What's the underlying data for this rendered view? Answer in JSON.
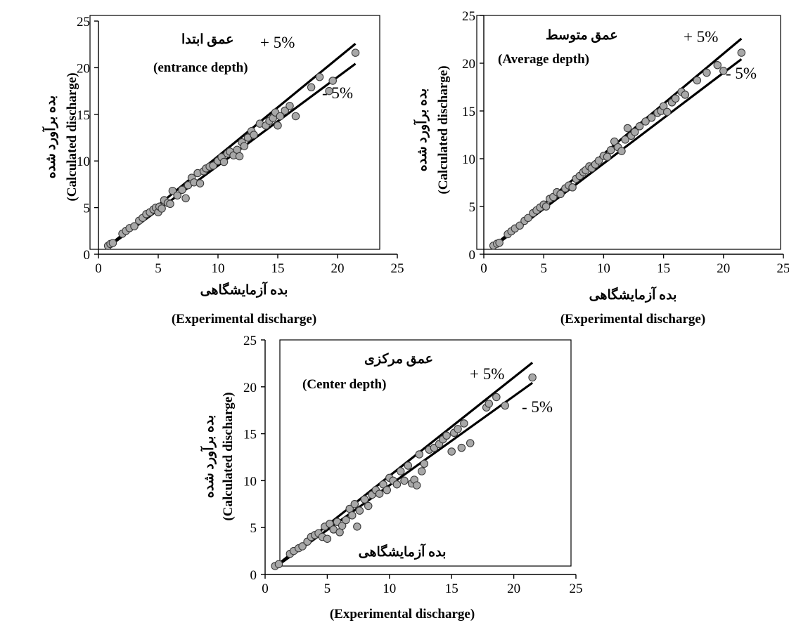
{
  "chart_data": [
    {
      "type": "scatter",
      "id": "entrance",
      "title_fa": "عمق ابتدا",
      "title_en": "(entrance depth)",
      "xlabel_fa": "بده آزمایشگاهی",
      "xlabel_en": "(Experimental discharge)",
      "ylabel_fa": "بده برآورد شده",
      "ylabel_en": "(Calculated discharge)",
      "upper_label": "+ 5%",
      "lower_label": "- 5%",
      "band_pct": 5,
      "band_x_range": [
        1,
        21.5
      ],
      "xlim": [
        0,
        25
      ],
      "ylim": [
        0,
        25
      ],
      "xticks": [
        "0",
        "5",
        "10",
        "15",
        "20",
        "25"
      ],
      "yticks": [
        "0",
        "5",
        "10",
        "15",
        "20",
        "25"
      ],
      "grid": false,
      "points": [
        [
          0.8,
          0.9
        ],
        [
          1.0,
          1.1
        ],
        [
          1.2,
          1.2
        ],
        [
          2.0,
          2.2
        ],
        [
          2.3,
          2.5
        ],
        [
          2.6,
          2.8
        ],
        [
          3.0,
          3.0
        ],
        [
          3.4,
          3.6
        ],
        [
          3.7,
          3.9
        ],
        [
          4.0,
          4.3
        ],
        [
          4.3,
          4.5
        ],
        [
          4.6,
          4.8
        ],
        [
          4.8,
          5.0
        ],
        [
          5.0,
          4.5
        ],
        [
          5.1,
          5.1
        ],
        [
          5.3,
          4.9
        ],
        [
          5.5,
          5.8
        ],
        [
          5.8,
          5.5
        ],
        [
          6.0,
          5.4
        ],
        [
          6.2,
          6.8
        ],
        [
          6.6,
          6.3
        ],
        [
          7.0,
          6.9
        ],
        [
          7.3,
          6.0
        ],
        [
          7.5,
          7.4
        ],
        [
          7.8,
          8.2
        ],
        [
          8.0,
          7.7
        ],
        [
          8.3,
          8.7
        ],
        [
          8.5,
          7.6
        ],
        [
          8.8,
          8.9
        ],
        [
          9.0,
          9.2
        ],
        [
          9.3,
          9.4
        ],
        [
          9.6,
          9.5
        ],
        [
          10.0,
          10.0
        ],
        [
          10.3,
          10.4
        ],
        [
          10.5,
          9.9
        ],
        [
          10.8,
          10.8
        ],
        [
          11.0,
          11.0
        ],
        [
          11.3,
          10.6
        ],
        [
          11.6,
          11.2
        ],
        [
          11.8,
          10.5
        ],
        [
          12.0,
          12.0
        ],
        [
          12.2,
          11.6
        ],
        [
          12.5,
          12.5
        ],
        [
          12.8,
          13.2
        ],
        [
          13.0,
          12.8
        ],
        [
          13.5,
          14.0
        ],
        [
          14.0,
          13.8
        ],
        [
          14.3,
          14.3
        ],
        [
          14.6,
          14.6
        ],
        [
          14.8,
          15.2
        ],
        [
          15.0,
          13.8
        ],
        [
          15.2,
          14.8
        ],
        [
          15.6,
          15.4
        ],
        [
          16.0,
          15.9
        ],
        [
          16.5,
          14.8
        ],
        [
          17.8,
          17.9
        ],
        [
          18.5,
          19.0
        ],
        [
          19.3,
          17.5
        ],
        [
          19.6,
          18.6
        ],
        [
          21.5,
          21.6
        ]
      ]
    },
    {
      "type": "scatter",
      "id": "average",
      "title_fa": "عمق متوسط",
      "title_en": "(Average depth)",
      "xlabel_fa": "بده آزمایشگاهی",
      "xlabel_en": "(Experimental discharge)",
      "ylabel_fa": "بده برآورد شده",
      "ylabel_en": "(Calculated discharge)",
      "upper_label": "+ 5%",
      "lower_label": "- 5%",
      "band_pct": 5,
      "band_x_range": [
        1,
        21.5
      ],
      "xlim": [
        0,
        25
      ],
      "ylim": [
        0,
        25
      ],
      "xticks": [
        "0",
        "5",
        "10",
        "15",
        "20",
        "25"
      ],
      "yticks": [
        "0",
        "5",
        "10",
        "15",
        "20",
        "25"
      ],
      "grid": false,
      "points": [
        [
          0.8,
          0.9
        ],
        [
          1.1,
          1.1
        ],
        [
          1.3,
          1.2
        ],
        [
          2.0,
          2.1
        ],
        [
          2.3,
          2.4
        ],
        [
          2.6,
          2.7
        ],
        [
          3.0,
          3.0
        ],
        [
          3.4,
          3.5
        ],
        [
          3.7,
          3.8
        ],
        [
          4.1,
          4.3
        ],
        [
          4.4,
          4.6
        ],
        [
          4.7,
          4.9
        ],
        [
          5.0,
          5.2
        ],
        [
          5.2,
          5.0
        ],
        [
          5.5,
          5.8
        ],
        [
          5.8,
          6.0
        ],
        [
          6.1,
          6.5
        ],
        [
          6.4,
          6.3
        ],
        [
          6.8,
          6.9
        ],
        [
          7.1,
          7.2
        ],
        [
          7.4,
          7.0
        ],
        [
          7.7,
          7.9
        ],
        [
          8.0,
          8.2
        ],
        [
          8.3,
          8.6
        ],
        [
          8.5,
          8.8
        ],
        [
          8.8,
          9.2
        ],
        [
          9.0,
          9.0
        ],
        [
          9.3,
          9.4
        ],
        [
          9.6,
          9.8
        ],
        [
          10.0,
          10.3
        ],
        [
          10.3,
          10.2
        ],
        [
          10.6,
          10.9
        ],
        [
          10.9,
          11.8
        ],
        [
          11.2,
          11.2
        ],
        [
          11.5,
          10.8
        ],
        [
          11.8,
          12.0
        ],
        [
          12.0,
          13.2
        ],
        [
          12.3,
          12.4
        ],
        [
          12.6,
          12.8
        ],
        [
          13.0,
          13.4
        ],
        [
          13.5,
          13.9
        ],
        [
          14.0,
          14.3
        ],
        [
          14.5,
          14.8
        ],
        [
          14.8,
          15.0
        ],
        [
          15.0,
          15.5
        ],
        [
          15.3,
          14.9
        ],
        [
          15.7,
          15.9
        ],
        [
          16.0,
          16.3
        ],
        [
          16.5,
          17.0
        ],
        [
          16.8,
          16.7
        ],
        [
          17.8,
          18.2
        ],
        [
          18.6,
          19.0
        ],
        [
          19.5,
          19.8
        ],
        [
          20.0,
          19.2
        ],
        [
          21.5,
          21.1
        ]
      ]
    },
    {
      "type": "scatter",
      "id": "center",
      "title_fa": "عمق مرکزی",
      "title_en": "(Center depth)",
      "xlabel_fa": "بده آزمایشگاهی",
      "xlabel_en": "(Experimental discharge)",
      "ylabel_fa": "بده برآورد شده",
      "ylabel_en": "(Calculated discharge)",
      "upper_label": "+ 5%",
      "lower_label": "- 5%",
      "band_pct": 5,
      "band_x_range": [
        1,
        21.5
      ],
      "xlim": [
        0,
        25
      ],
      "ylim": [
        0,
        25
      ],
      "xticks": [
        "0",
        "5",
        "10",
        "15",
        "20",
        "25"
      ],
      "yticks": [
        "0",
        "5",
        "10",
        "15",
        "20",
        "25"
      ],
      "grid": false,
      "points": [
        [
          0.8,
          0.9
        ],
        [
          1.1,
          1.1
        ],
        [
          2.0,
          2.2
        ],
        [
          2.3,
          2.5
        ],
        [
          2.7,
          2.8
        ],
        [
          3.0,
          3.0
        ],
        [
          3.4,
          3.5
        ],
        [
          3.7,
          4.0
        ],
        [
          4.0,
          4.2
        ],
        [
          4.3,
          4.4
        ],
        [
          4.6,
          4.0
        ],
        [
          4.8,
          5.1
        ],
        [
          5.0,
          3.8
        ],
        [
          5.2,
          5.4
        ],
        [
          5.5,
          4.8
        ],
        [
          5.8,
          5.6
        ],
        [
          6.0,
          4.5
        ],
        [
          6.2,
          5.2
        ],
        [
          6.5,
          5.8
        ],
        [
          6.8,
          7.0
        ],
        [
          7.0,
          6.3
        ],
        [
          7.2,
          7.5
        ],
        [
          7.4,
          5.1
        ],
        [
          7.6,
          6.8
        ],
        [
          8.0,
          8.0
        ],
        [
          8.3,
          7.3
        ],
        [
          8.6,
          8.5
        ],
        [
          8.9,
          9.0
        ],
        [
          9.2,
          8.6
        ],
        [
          9.5,
          9.6
        ],
        [
          9.8,
          9.0
        ],
        [
          10.0,
          10.3
        ],
        [
          10.3,
          10.0
        ],
        [
          10.6,
          9.6
        ],
        [
          10.9,
          11.0
        ],
        [
          11.2,
          10.0
        ],
        [
          11.5,
          11.6
        ],
        [
          11.8,
          9.7
        ],
        [
          12.0,
          10.1
        ],
        [
          12.2,
          9.5
        ],
        [
          12.4,
          12.8
        ],
        [
          12.6,
          11.0
        ],
        [
          12.8,
          11.8
        ],
        [
          13.2,
          13.3
        ],
        [
          13.6,
          13.5
        ],
        [
          14.0,
          13.9
        ],
        [
          14.3,
          14.4
        ],
        [
          14.6,
          14.8
        ],
        [
          15.0,
          13.1
        ],
        [
          15.2,
          15.1
        ],
        [
          15.5,
          15.5
        ],
        [
          15.8,
          13.5
        ],
        [
          16.0,
          16.1
        ],
        [
          16.5,
          14.0
        ],
        [
          17.8,
          17.8
        ],
        [
          18.0,
          18.2
        ],
        [
          18.6,
          18.9
        ],
        [
          19.3,
          18.0
        ],
        [
          21.5,
          21.0
        ]
      ]
    }
  ]
}
